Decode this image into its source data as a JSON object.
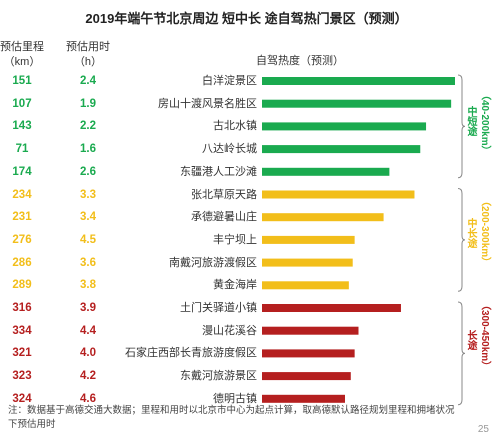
{
  "title": "2019年端午节北京周边 短中长 途自驾热门景区（预测）",
  "headers": {
    "distance": "预估里程",
    "distance_unit": "（km）",
    "time": "预估用时",
    "time_unit": "（h）",
    "chart": "自驾热度（预测）"
  },
  "colors": {
    "short": "#1aaa4f",
    "medium": "#f2be1a",
    "long": "#b51f1f"
  },
  "groups": {
    "short": {
      "name": "中短途",
      "range": "（40-200km）"
    },
    "medium": {
      "name": "中长途",
      "range": "（200-300km）"
    },
    "long": {
      "name": "长途",
      "range": "（300-450km）"
    }
  },
  "chart_data": {
    "type": "bar",
    "orientation": "horizontal",
    "title": "自驾热度（预测）",
    "categories": [
      "白洋淀景区",
      "房山十渡风景名胜区",
      "古北水镇",
      "八达岭长城",
      "东疆港人工沙滩",
      "张北草原天路",
      "承德避暑山庄",
      "丰宁坝上",
      "南戴河旅游渡假区",
      "黄金海岸",
      "土门关驿道小镇",
      "漫山花溪谷",
      "石家庄西部长青旅游度假区",
      "东戴河旅游景区",
      "德明古镇"
    ],
    "distance_km": [
      151,
      107,
      143,
      71,
      174,
      234,
      231,
      276,
      286,
      289,
      316,
      334,
      321,
      323,
      324
    ],
    "time_h": [
      "2.4",
      "1.9",
      "2.2",
      "1.6",
      "2.6",
      "3.3",
      "3.4",
      "4.5",
      "3.6",
      "3.8",
      "3.9",
      "4.4",
      "4.0",
      "4.2",
      "4.6"
    ],
    "group": [
      "short",
      "short",
      "short",
      "short",
      "short",
      "medium",
      "medium",
      "medium",
      "medium",
      "medium",
      "long",
      "long",
      "long",
      "long",
      "long"
    ],
    "values": [
      100,
      98,
      85,
      82,
      66,
      79,
      63,
      48,
      47,
      45,
      72,
      50,
      48,
      46,
      43
    ],
    "xlim": [
      0,
      100
    ],
    "grid": false,
    "legend": "none"
  },
  "footnote": "注：数据基于高德交通大数据；里程和用时以北京市中心为起点计算，取高德默认路径规划里程和拥堵状况下预估用时",
  "page_number": "25"
}
